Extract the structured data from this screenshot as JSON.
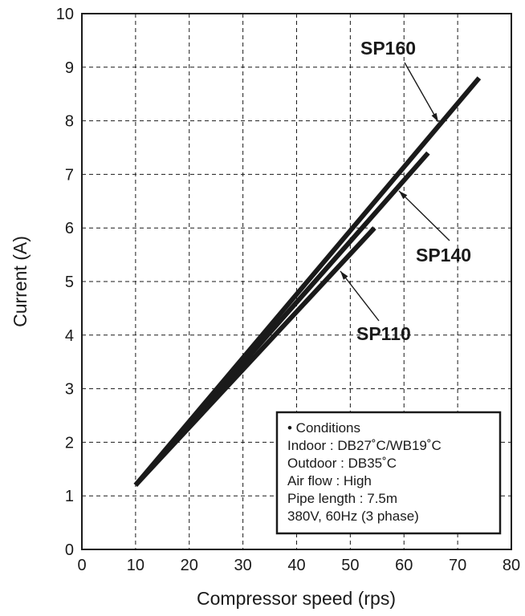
{
  "chart_data": {
    "type": "line",
    "xlabel": "Compressor speed (rps)",
    "ylabel": "Current (A)",
    "xlim": [
      0,
      80
    ],
    "ylim": [
      0,
      10
    ],
    "x_ticks": [
      "0",
      "10",
      "20",
      "30",
      "40",
      "50",
      "60",
      "70",
      "80"
    ],
    "y_ticks": [
      "0",
      "1",
      "2",
      "3",
      "4",
      "5",
      "6",
      "7",
      "8",
      "9",
      "10"
    ],
    "grid": true,
    "series": [
      {
        "name": "SP160",
        "x": [
          10,
          74
        ],
        "y": [
          1.2,
          8.8
        ]
      },
      {
        "name": "SP140",
        "x": [
          10,
          64.5
        ],
        "y": [
          1.2,
          7.4
        ]
      },
      {
        "name": "SP110",
        "x": [
          10,
          54.5
        ],
        "y": [
          1.2,
          6.0
        ]
      }
    ],
    "annotations": {
      "title": "• Conditions",
      "lines": [
        "Indoor : DB27˚C/WB19˚C",
        "Outdoor : DB35˚C",
        "Air flow : High",
        "Pipe length : 7.5m",
        "380V, 60Hz (3 phase)"
      ]
    },
    "colors": {
      "line": "#1a1a1a",
      "background": "#ffffff"
    }
  }
}
